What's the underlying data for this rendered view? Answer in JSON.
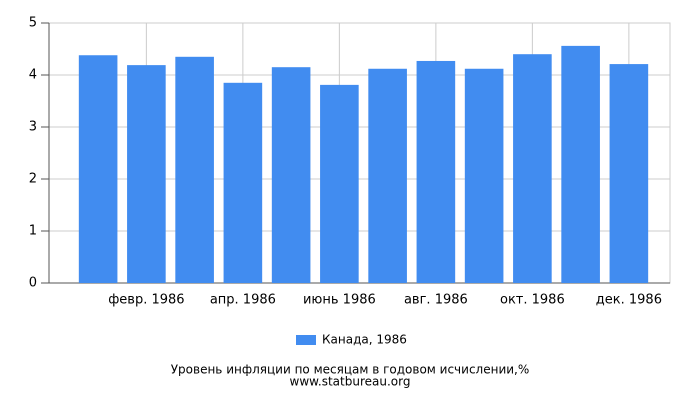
{
  "chart_data": {
    "type": "bar",
    "title": "Уровень инфляции по месяцам в годовом исчислении,%",
    "subtitle": "www.statbureau.org",
    "categories": [
      null,
      "февр. 1986",
      null,
      "апр. 1986",
      null,
      "июнь 1986",
      null,
      "авг. 1986",
      null,
      "окт. 1986",
      null,
      "дек. 1986"
    ],
    "series": [
      {
        "name": "Канада, 1986",
        "color": "#418cf0",
        "values": [
          4.38,
          4.19,
          4.35,
          3.85,
          4.15,
          3.81,
          4.12,
          4.27,
          4.12,
          4.4,
          4.56,
          4.21
        ]
      }
    ],
    "ylim": [
      0,
      5
    ],
    "yticks": [
      0,
      1,
      2,
      3,
      4,
      5
    ],
    "grid": true,
    "legend": "bottom"
  }
}
